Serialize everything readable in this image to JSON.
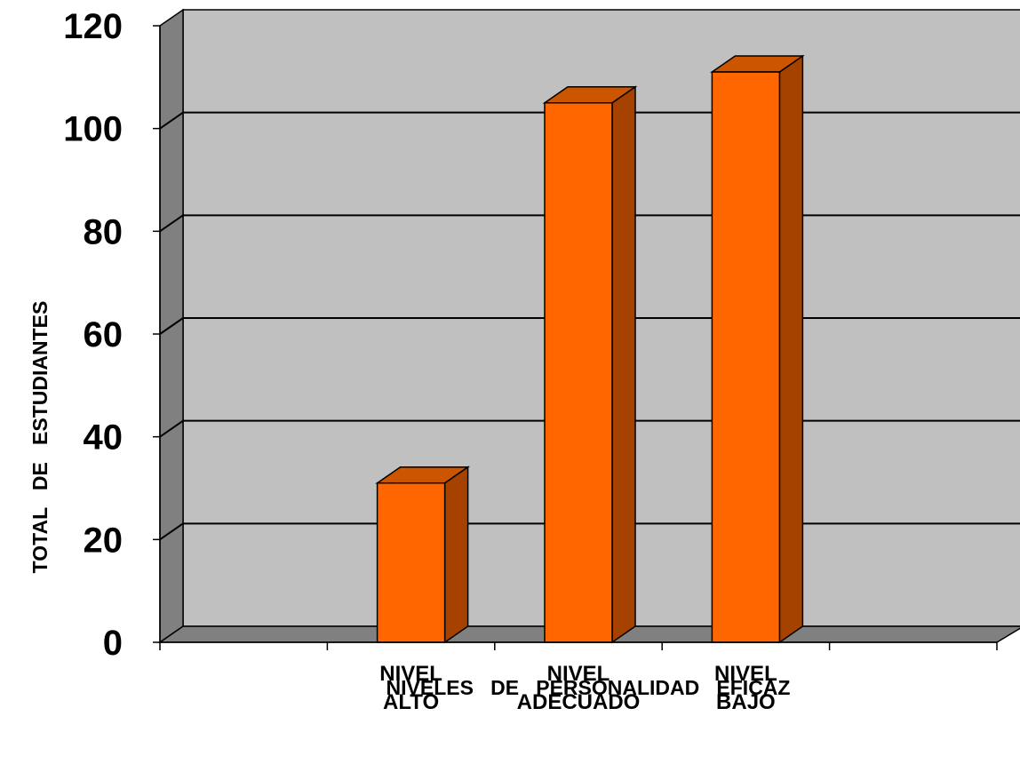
{
  "chart_data": {
    "type": "bar",
    "categories": [
      [
        "",
        ""
      ],
      [
        "NIVEL",
        "ALTO"
      ],
      [
        "NIVEL",
        "ADECUADO"
      ],
      [
        "NIVEL",
        "BAJO"
      ],
      [
        "",
        ""
      ]
    ],
    "values": [
      0,
      31,
      105,
      111,
      0
    ],
    "xlabel": "NIVELES   DE   PERSONALIDAD   EFICAZ",
    "ylabel": "TOTAL   DE   ESTUDIANTES",
    "ylim": [
      0,
      120
    ],
    "yticks": [
      0,
      20,
      40,
      60,
      80,
      100,
      120
    ],
    "grid": true,
    "legend": "none",
    "colors": {
      "bar_front": "#ff6600",
      "bar_side": "#a64200",
      "bar_top": "#cc5500",
      "back_wall": "#c0c0c0",
      "side_wall": "#808080",
      "floor": "#808080"
    }
  }
}
